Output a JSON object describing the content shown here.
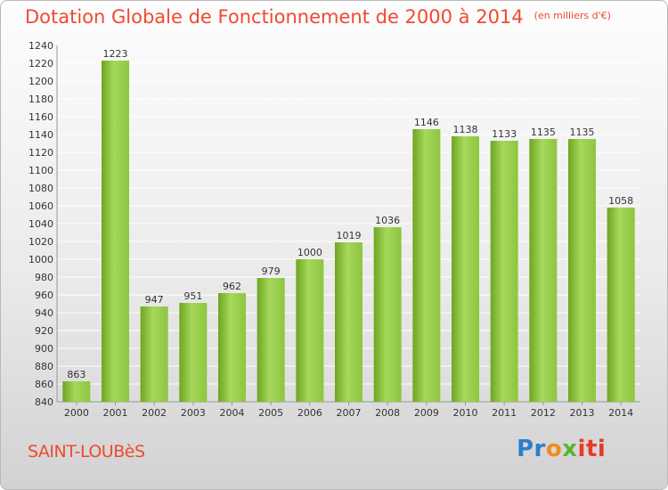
{
  "title": "Dotation Globale de Fonctionnement de 2000 à 2014",
  "unit": "(en milliers d'€)",
  "commune": "SAINT-LOUBèS",
  "logo_text": [
    "Pr",
    "o",
    "x",
    "iti"
  ],
  "colors": {
    "bar_light": "#a6d85c",
    "bar_dark": "#6fa520",
    "title": "#ef4a2f",
    "grid": "#ffffff"
  },
  "chart_data": {
    "type": "bar",
    "categories": [
      "2000",
      "2001",
      "2002",
      "2003",
      "2004",
      "2005",
      "2006",
      "2007",
      "2008",
      "2009",
      "2010",
      "2011",
      "2012",
      "2013",
      "2014"
    ],
    "values": [
      863,
      1223,
      947,
      951,
      962,
      979,
      1000,
      1019,
      1036,
      1146,
      1138,
      1133,
      1135,
      1135,
      1058
    ],
    "ylim": [
      840,
      1240
    ],
    "ytick_step": 20,
    "grid": true
  }
}
